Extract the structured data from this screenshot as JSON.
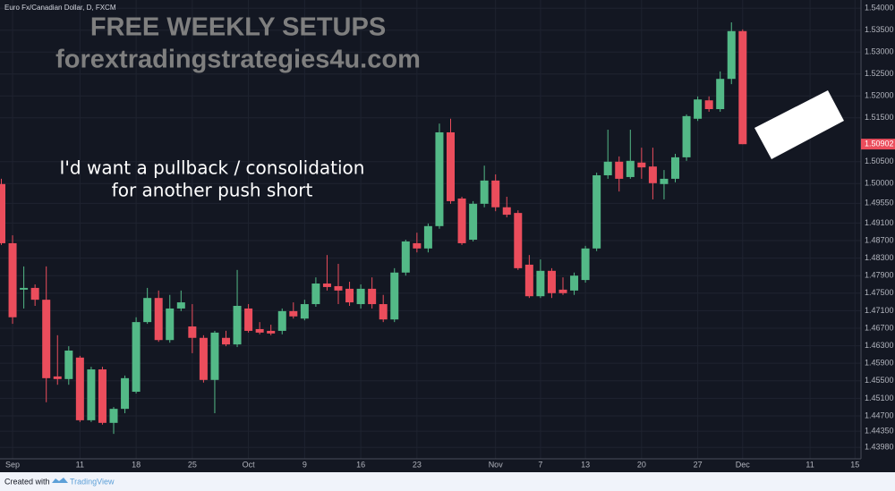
{
  "chart_data": {
    "type": "candlestick",
    "title": "Euro Fx/Canadian Dollar, D, FXCM",
    "categories": [
      null,
      "Sep",
      null,
      null,
      null,
      null,
      null,
      "11",
      null,
      null,
      null,
      null,
      "18",
      null,
      null,
      null,
      null,
      "25",
      null,
      null,
      null,
      null,
      "Oct",
      null,
      null,
      null,
      null,
      "9",
      null,
      null,
      null,
      null,
      "16",
      null,
      null,
      null,
      null,
      "23",
      null,
      null,
      null,
      null,
      null,
      null,
      "Nov",
      null,
      null,
      null,
      "7",
      null,
      null,
      null,
      "13",
      null,
      null,
      null,
      null,
      "20",
      null,
      null,
      null,
      null,
      "27",
      null,
      null,
      null,
      "Dec",
      null,
      null,
      null,
      null,
      null,
      "11",
      null,
      null,
      null,
      "15"
    ],
    "open": [
      1.4999,
      1.4864,
      1.4758,
      1.4762,
      1.4735,
      1.456,
      1.4554,
      1.4603,
      1.446,
      1.4576,
      1.4454,
      1.4486,
      1.4525,
      1.4684,
      1.4739,
      1.4643,
      1.4715,
      1.4674,
      1.4648,
      1.4552,
      1.4648,
      1.4633,
      1.4715,
      1.4668,
      1.4664,
      1.4664,
      1.4709,
      1.4692,
      1.4725,
      1.4772,
      1.4766,
      1.476,
      1.4725,
      1.476,
      1.4725,
      1.469,
      1.4797,
      1.4864,
      1.4852,
      1.4903,
      1.5117,
      1.4966,
      1.4872,
      1.4954,
      1.5007,
      1.4946,
      1.4933,
      1.4815,
      1.4743,
      1.4801,
      1.4758,
      1.4756,
      1.478,
      1.4852,
      1.5019,
      1.505,
      1.5015,
      1.5048,
      1.5039,
      1.4999,
      1.5011,
      1.506,
      1.5148,
      1.519,
      1.517,
      1.5239,
      1.5348,
      null,
      null,
      null,
      null,
      null,
      null,
      null,
      null,
      null,
      null
    ],
    "high": [
      1.5011,
      1.4882,
      1.4811,
      1.477,
      1.4811,
      1.4654,
      1.4629,
      1.4607,
      1.4582,
      1.4582,
      1.449,
      1.4562,
      1.4695,
      1.4762,
      1.4756,
      1.4746,
      1.4756,
      1.4725,
      1.4654,
      1.4664,
      1.4664,
      1.4803,
      1.4725,
      1.4684,
      1.4678,
      1.4715,
      1.4729,
      1.4735,
      1.4786,
      1.4837,
      1.4817,
      1.4776,
      1.477,
      1.4786,
      1.4746,
      1.4807,
      1.4872,
      1.4888,
      1.4909,
      1.5137,
      1.5148,
      1.497,
      1.496,
      1.5041,
      1.5021,
      1.497,
      1.4939,
      1.4837,
      1.4827,
      1.4807,
      1.4786,
      1.4797,
      1.4858,
      1.5025,
      1.5123,
      1.5062,
      1.5123,
      1.5082,
      1.5082,
      1.5031,
      1.5068,
      1.5158,
      1.5199,
      1.5199,
      1.5256,
      1.5368,
      1.5352,
      null,
      null,
      null,
      null,
      null,
      null,
      null,
      null,
      null,
      null
    ],
    "low": [
      1.486,
      1.468,
      1.4715,
      1.4721,
      1.4501,
      1.4541,
      1.4541,
      1.4456,
      1.4456,
      1.445,
      1.4429,
      1.4476,
      1.4521,
      1.468,
      1.4639,
      1.4637,
      1.4709,
      1.4613,
      1.4546,
      1.4476,
      1.4629,
      1.4627,
      1.466,
      1.4656,
      1.4654,
      1.4656,
      1.4692,
      1.4688,
      1.4719,
      1.4756,
      1.4725,
      1.4721,
      1.4715,
      1.4715,
      1.4684,
      1.4684,
      1.479,
      1.4843,
      1.4843,
      1.4897,
      1.4954,
      1.486,
      1.4868,
      1.4946,
      1.4937,
      1.4923,
      1.4803,
      1.4739,
      1.4739,
      1.4739,
      1.4746,
      1.4746,
      1.4774,
      1.4846,
      1.5011,
      1.4982,
      1.5011,
      1.5011,
      1.4964,
      1.4964,
      1.5003,
      1.5052,
      1.5143,
      1.5164,
      1.5164,
      1.5227,
      1.509,
      null,
      null,
      null,
      null,
      null,
      null,
      null,
      null,
      null,
      null
    ],
    "close": [
      1.4864,
      1.4695,
      1.4762,
      1.4735,
      1.4556,
      1.4554,
      1.4619,
      1.446,
      1.4576,
      1.4454,
      1.4486,
      1.4556,
      1.4684,
      1.4739,
      1.4643,
      1.4715,
      1.4729,
      1.4648,
      1.4552,
      1.466,
      1.4633,
      1.4721,
      1.4664,
      1.466,
      1.4658,
      1.4709,
      1.4697,
      1.4725,
      1.4772,
      1.4764,
      1.4756,
      1.4729,
      1.476,
      1.4725,
      1.469,
      1.4797,
      1.4868,
      1.4852,
      1.4903,
      1.5117,
      1.496,
      1.4864,
      1.4954,
      1.5007,
      1.4946,
      1.4929,
      1.4807,
      1.4743,
      1.4801,
      1.475,
      1.475,
      1.479,
      1.4852,
      1.5019,
      1.505,
      1.5011,
      1.5052,
      1.5037,
      1.5001,
      1.5011,
      1.506,
      1.5154,
      1.5192,
      1.517,
      1.5239,
      1.5348,
      1.509,
      null,
      null,
      null,
      null,
      null,
      null,
      null,
      null,
      null,
      null
    ],
    "up_color": "#53b987",
    "down_color": "#eb4d5c",
    "ylim": [
      1.4372,
      1.5419
    ],
    "yticks": [
      {
        "value": 1.54,
        "label": "1.54000"
      },
      {
        "value": 1.535,
        "label": "1.53500"
      },
      {
        "value": 1.53,
        "label": "1.53000"
      },
      {
        "value": 1.525,
        "label": "1.52500"
      },
      {
        "value": 1.52,
        "label": "1.52000"
      },
      {
        "value": 1.515,
        "label": "1.51500"
      },
      {
        "value": 1.505,
        "label": "1.50500"
      },
      {
        "value": 1.5,
        "label": "1.50000"
      },
      {
        "value": 1.4955,
        "label": "1.49550"
      },
      {
        "value": 1.491,
        "label": "1.49100"
      },
      {
        "value": 1.487,
        "label": "1.48700"
      },
      {
        "value": 1.483,
        "label": "1.48300"
      },
      {
        "value": 1.479,
        "label": "1.47900"
      },
      {
        "value": 1.475,
        "label": "1.47500"
      },
      {
        "value": 1.471,
        "label": "1.47100"
      },
      {
        "value": 1.467,
        "label": "1.46700"
      },
      {
        "value": 1.463,
        "label": "1.46300"
      },
      {
        "value": 1.459,
        "label": "1.45900"
      },
      {
        "value": 1.455,
        "label": "1.45500"
      },
      {
        "value": 1.451,
        "label": "1.45100"
      },
      {
        "value": 1.447,
        "label": "1.44700"
      },
      {
        "value": 1.4435,
        "label": "1.44350"
      },
      {
        "value": 1.4398,
        "label": "1.43980"
      }
    ],
    "last_price": {
      "value": 1.50902,
      "label": "1.50902"
    },
    "grid": true
  },
  "watermark": {
    "title": "FREE WEEKLY SETUPS",
    "site": "forextradingstrategies4u.com"
  },
  "annotation": [
    "I'd want a pullback / consolidation",
    "for another push short"
  ],
  "footer": {
    "created": "Created with",
    "brand": "TradingView"
  }
}
